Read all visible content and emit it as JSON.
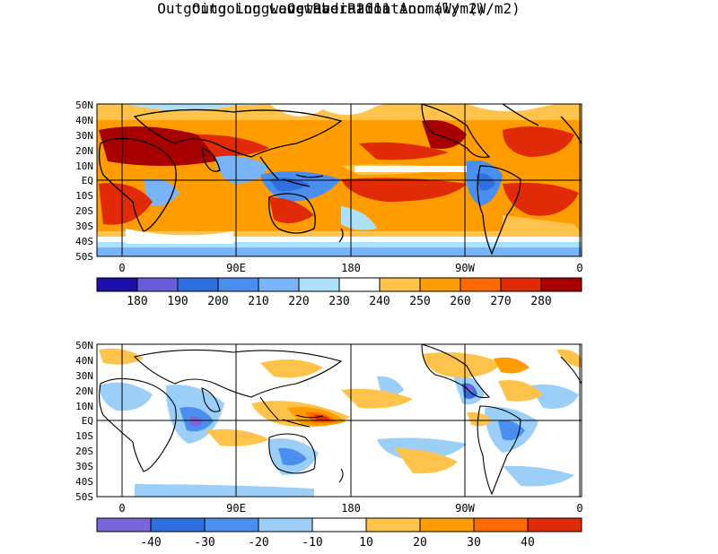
{
  "titles": {
    "date": "October 2011",
    "olr": "Outgoing Longwave Radiation (W/m2)",
    "anomaly": "Outgoing Longwave Radiation Anomaly (W/m2)"
  },
  "lat_labels": [
    "50N",
    "40N",
    "30N",
    "20N",
    "10N",
    "EQ",
    "10S",
    "20S",
    "30S",
    "40S",
    "50S"
  ],
  "lon_labels": [
    "0",
    "90E",
    "180",
    "90W",
    "0"
  ],
  "olr_colorbar": {
    "labels": [
      "180",
      "190",
      "200",
      "210",
      "220",
      "230",
      "240",
      "250",
      "260",
      "270",
      "280"
    ],
    "colors": [
      "#1a0fa8",
      "#6a5cd8",
      "#2f6fe0",
      "#4a8ff0",
      "#78b4f7",
      "#ade0fb",
      "#ffffff",
      "#ffc24a",
      "#ff9c00",
      "#ff6a00",
      "#e02a08",
      "#a80000"
    ]
  },
  "anom_colorbar": {
    "labels": [
      "-40",
      "-30",
      "-20",
      "-10",
      "10",
      "20",
      "30",
      "40"
    ],
    "colors": [
      "#7a66d8",
      "#2f6fe0",
      "#4a8ff0",
      "#9ccff8",
      "#ffffff",
      "#ffc24a",
      "#ff9c00",
      "#ff6a00",
      "#e02a08"
    ]
  },
  "map_features": {
    "olr_panel": "OLR field with high values over subtropics and low values over tropical convection",
    "anomaly_panel": "anomaly field with negative (blue) over Indian Ocean, Maritime Continent south, and positive (orange) near equatorial Pacific"
  }
}
